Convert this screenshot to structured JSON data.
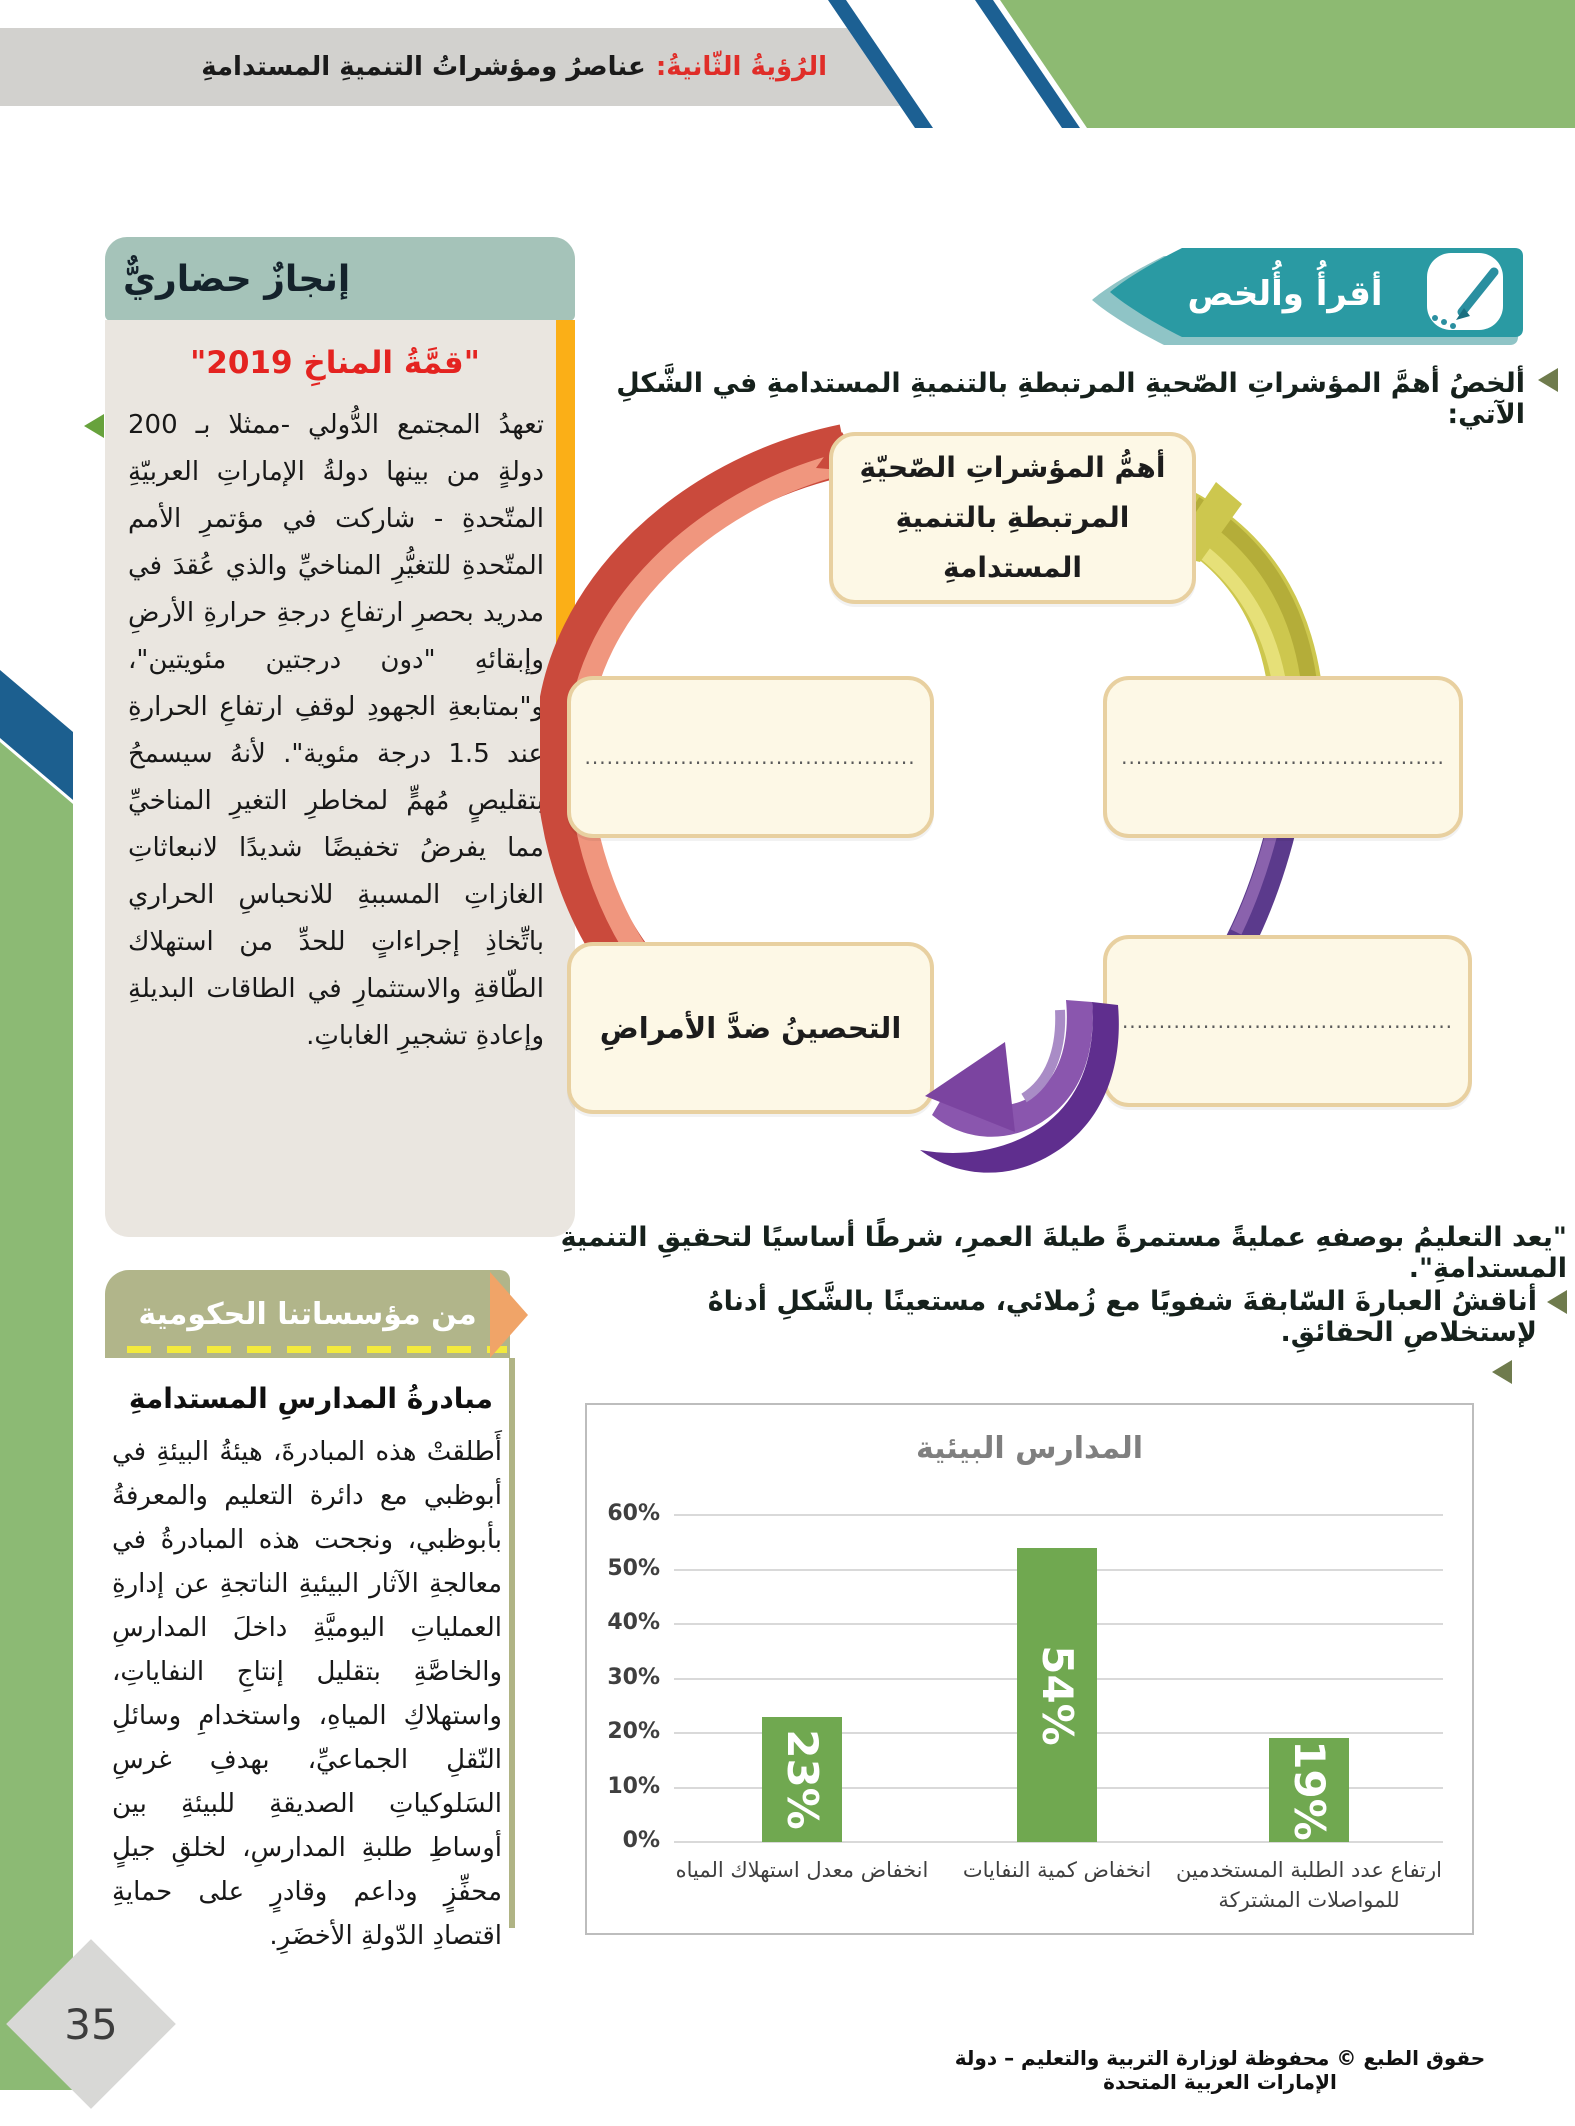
{
  "header": {
    "chapter_label": "الرُؤيةُ الثّانيةُ:",
    "chapter_title": "عناصرُ ومؤشراتُ التنميةِ المستدامةِ"
  },
  "achievement": {
    "heading": "إنجازٌ حضاريٌّ",
    "title": "\"قمَّةُ المناخِ 2019\"",
    "body": "تعهدُ المجتمع الدُّولي -ممثلا بـ 200 دولةٍ من بينها دولةُ الإماراتِ العربيّةِ المتّحدةِ - شاركت في مؤتمرِ الأمم المتّحدةِ للتغيُّرِ المناخيِّ والذي عُقدَ في مدريد بحصرِ ارتفاعِ درجةِ حرارةِ الأرضِ وإبقائهِ \"دون درجتين مئويتين\"، و\"بمتابعةِ الجهودِ لوقفِ ارتفاعِ الحرارةِ عند 1.5 درجة مئوية\". لأنهُ سيسمحُ بتقليصٍ مُهمٍّ لمخاطرِ التغيرِ المناخيِّ مما يفرضُ تخفيضًا شديدًا لانبعاثاتِ الغازاتِ المسببةِ للانحباسِ الحراري باتِّخاذِ إجراءاتٍ للحدِّ من استهلاك الطّاقةِ والاستثمارِ في الطاقات البديلةِ وإعادةِ تشجيرِ الغاباتِ."
  },
  "read_summarize": {
    "banner": "أقرأُ وأُلخص",
    "instruction": "ألخصُ أهمَّ المؤشراتِ الصّحيةِ المرتبطةِ بالتنميةِ المستدامةِ في الشَّكلِ الآتي:"
  },
  "diagram": {
    "center_label": "أهمُّ المؤشراتِ الصّحيّةِ المرتبطةِ بالتنميةِ المستدامةِ",
    "mid_left_placeholder": ".............................................",
    "mid_right_placeholder": ".............................................",
    "bottom_left_label": "التحصينُ ضدَّ الأمراضِ",
    "bottom_right_placeholder": "............................................."
  },
  "quote": "\"يعد التعليمُ بوصفهِ عمليةً مستمرةً طيلةَ العمرِ، شرطًا أساسيًا لتحقيقِ التنميةِ المستدامةِ\".",
  "discussion": "أناقشُ العبارةَ السّابقةَ شفويًا مع زُملائي، مستعينًا بالشَّكلِ أدناهُ لإستخلاصِ الحقائقِ.",
  "institutions": {
    "heading": "من مؤسساتنا الحكومية",
    "title": "مبادرةُ المدارسِ المستدامةِ",
    "body": "أَطلقتْ هذه المبادرةَ، هيئةُ البيئةِ في أبوظبي مع دائرة التعليم والمعرفةُ بأبوظبي، ونجحت هذه المبادرةُ في معالجةِ الآثار البيئيةِ الناتجةِ عن إدارةِ العملياتِ اليوميَّةِ داخلَ المدارسِ والخاصَّةِ بتقليل إنتاجِ النفاياتِ، واستهلاكِ المياهِ، واستخدامِ وسائلِ النّقلِ الجماعيِّ، بهدفِ غرسِ السَلوكياتِ الصديقةِ للبيئةِ بين أوساطِ طلبةِ المدارسِ، لخلقِ جيلٍ محفِّزٍ وداعم وقادرٍ على حمايةِ اقتصادِ الدّولةِ الأخضَرِ."
  },
  "chart_data": {
    "type": "bar",
    "title": "المدارس البيئية",
    "categories": [
      "انخفاض معدل استهلاك المياه",
      "انخفاض كمية النفايات",
      "ارتفاع عدد الطلبة المستخدمين للمواصلات المشتركة"
    ],
    "values": [
      23,
      54,
      19
    ],
    "bar_labels": [
      "23%",
      "54%",
      "19%"
    ],
    "y_ticks": [
      "60%",
      "50%",
      "40%",
      "30%",
      "20%",
      "10%",
      "0%"
    ],
    "ylim": [
      0,
      60
    ],
    "grid": true,
    "legend_position": "none",
    "bar_color": "#70a850"
  },
  "page": {
    "number": "35",
    "footer": "حقوق الطبع © محفوظة لوزارة التربية والتعليم – دولة الإمارات العربية المتحدة"
  },
  "colors": {
    "header_green": "#8dba72",
    "header_gray": "#d2d1ce",
    "header_blue": "#1c6093",
    "accent_red": "#e02d28",
    "banner_teal": "#2a9aa3",
    "banner_teal_light": "#8fc4c6",
    "achievement_header": "#a5c3b9",
    "achievement_bg": "#eae6e0",
    "accent_yellow": "#fbaf17",
    "institutions_olive": "#b1b58a",
    "institutions_orange": "#f0a468",
    "dashed_yellow": "#f3ea3d",
    "cream_box_bg": "#fdf8e6",
    "cream_box_border": "#e8d0a0",
    "arrow_red": "#ca4a3c",
    "arrow_yellow": "#cdc74e",
    "arrow_purple": "#7b44a0",
    "bar_green": "#70a850"
  }
}
